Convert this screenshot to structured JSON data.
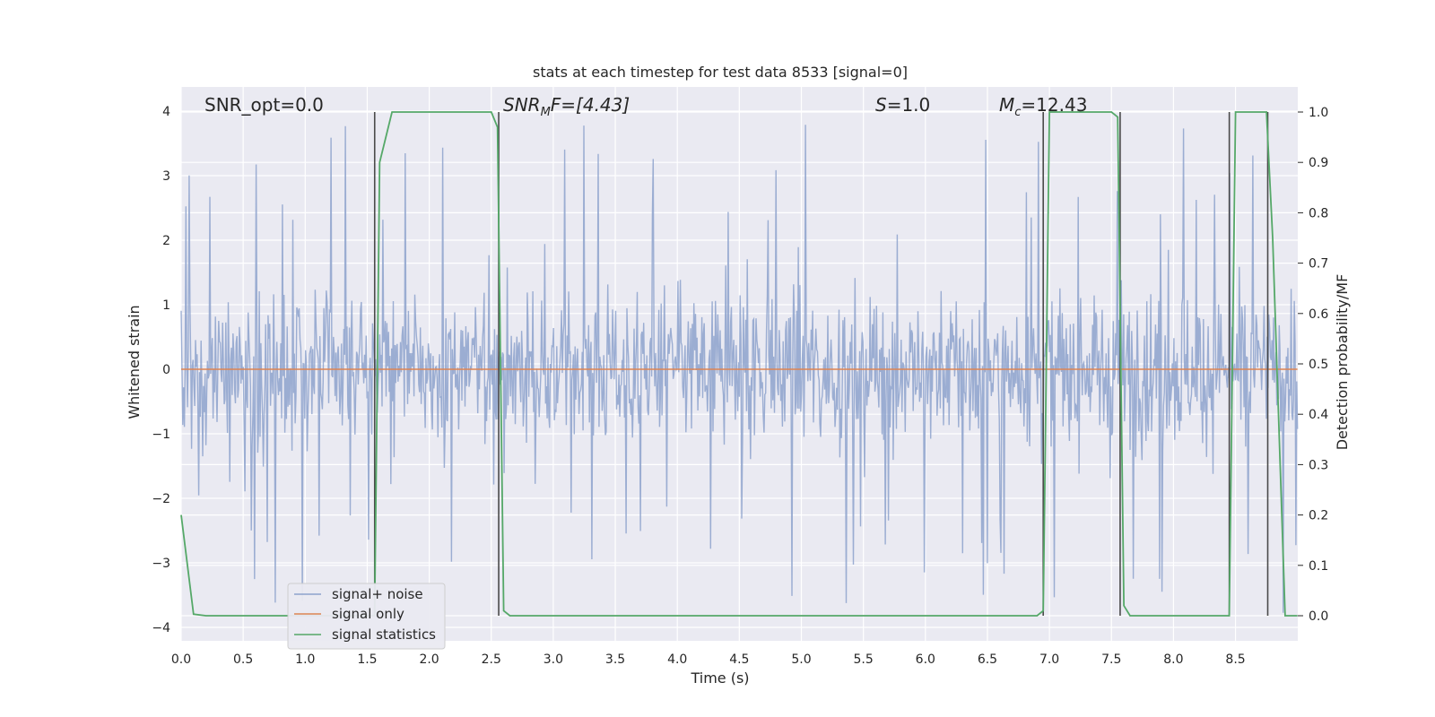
{
  "chart_data": {
    "type": "line",
    "title": "stats at each timestep for test data 8533 [signal=0]",
    "xlabel": "Time (s)",
    "ylabel": "Whitened strain",
    "ylabel_right": "Detection probability/MF",
    "xlim": [
      0,
      9
    ],
    "ylim": [
      -4.2,
      4.4
    ],
    "ylim_right": [
      -0.05,
      1.05
    ],
    "grid": true,
    "legend_position": "lower-left",
    "x_ticks": [
      "0.0",
      "0.5",
      "1.0",
      "1.5",
      "2.0",
      "2.5",
      "3.0",
      "3.5",
      "4.0",
      "4.5",
      "5.0",
      "5.5",
      "6.0",
      "6.5",
      "7.0",
      "7.5",
      "8.0",
      "8.5"
    ],
    "y_ticks": [
      "4",
      "3",
      "2",
      "1",
      "0",
      "−1",
      "−2",
      "−3",
      "−4"
    ],
    "y_ticks_right": [
      "1.0",
      "0.9",
      "0.8",
      "0.7",
      "0.6",
      "0.5",
      "0.4",
      "0.3",
      "0.2",
      "0.1",
      "0.0"
    ],
    "annotations": {
      "snr_opt": "SNR_opt=0.0",
      "snr_mf_base": "SNR",
      "snr_mf_sub": "M",
      "snr_mf_rest": "F=[4.43]",
      "s_base": "S",
      "s_rest": "=1.0",
      "mc_base": "M",
      "mc_sub": "c",
      "mc_rest": "=12.43"
    },
    "series": [
      {
        "name": "signal+ noise",
        "color": "#8da2cc",
        "description_values": "dense whitened noise, mostly within ±1.7, peaks up to ~3.8 and down to ~-3.6",
        "envelope_typical": 1.6,
        "envelope_peak": 3.8
      },
      {
        "name": "signal only",
        "color": "#dd8452",
        "x": [
          0,
          9
        ],
        "values": [
          0,
          0
        ]
      },
      {
        "name": "signal statistics",
        "color": "#55a868",
        "axis": "right",
        "x": [
          0.0,
          0.1,
          0.2,
          0.3,
          0.4,
          1.5,
          1.56,
          1.6,
          1.65,
          1.7,
          2.5,
          2.55,
          2.6,
          2.65,
          2.7,
          6.9,
          6.95,
          7.0,
          7.05,
          7.5,
          7.55,
          7.6,
          7.65,
          7.7,
          8.4,
          8.45,
          8.5,
          8.55,
          8.75,
          8.8,
          8.9,
          9.0
        ],
        "values": [
          0.2,
          0.003,
          0.0,
          0.0,
          0.0,
          0.0,
          0.0,
          0.9,
          0.95,
          1.0,
          1.0,
          0.97,
          0.01,
          0.0,
          0.0,
          0.0,
          0.01,
          1.0,
          1.0,
          1.0,
          0.99,
          0.02,
          0.0,
          0.0,
          0.0,
          0.0,
          1.0,
          1.0,
          1.0,
          0.75,
          0.0,
          0.0
        ]
      }
    ],
    "vertical_markers_x": [
      1.56,
      2.56,
      6.95,
      7.57,
      8.45,
      8.76
    ]
  }
}
